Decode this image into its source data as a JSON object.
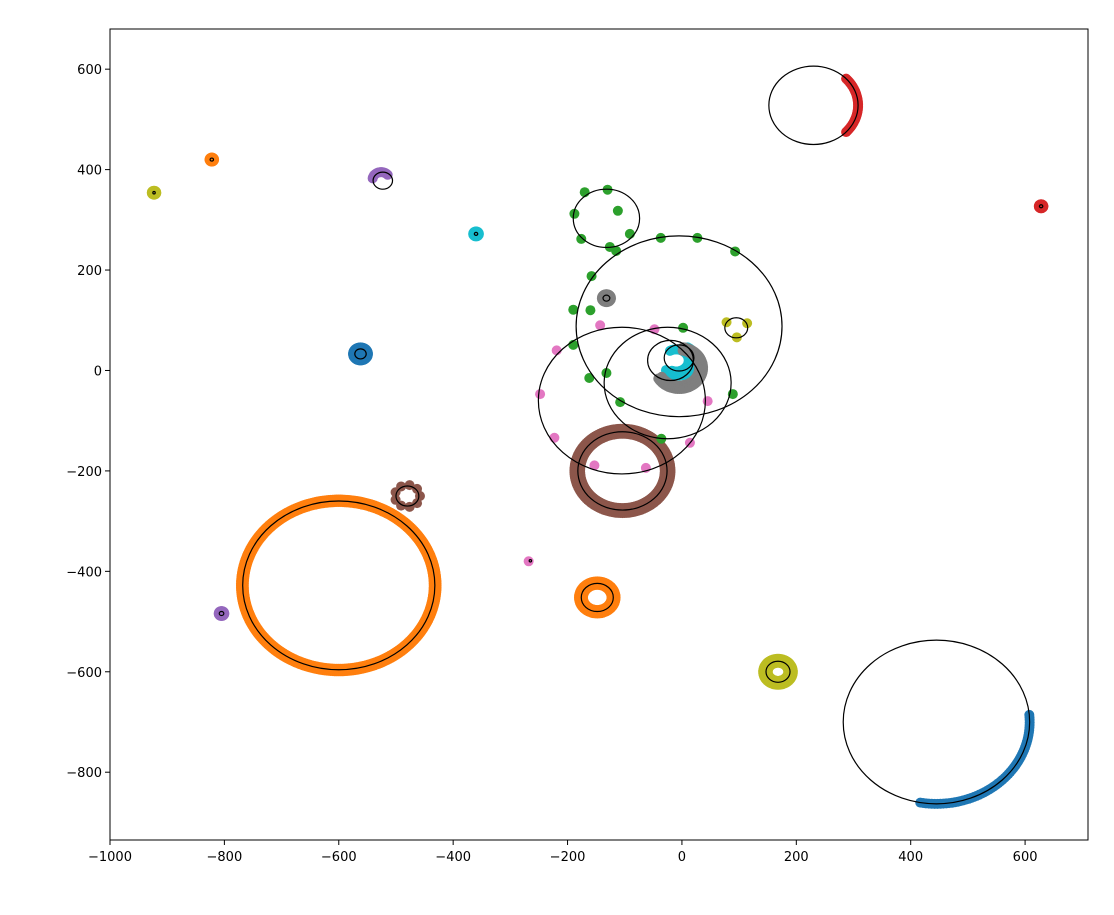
{
  "chart_data": {
    "type": "scatter",
    "title": "",
    "xlabel": "",
    "ylabel": "",
    "xlim": [
      -1000,
      710
    ],
    "ylim": [
      -935,
      680
    ],
    "grid": false,
    "xticks": [
      -1000,
      -800,
      -600,
      -400,
      -200,
      0,
      200,
      400,
      600
    ],
    "yticks": [
      600,
      400,
      200,
      0,
      -200,
      -400,
      -600,
      -800
    ],
    "xtick_labels": [
      "−1000",
      "−800",
      "−600",
      "−400",
      "−200",
      "0",
      "200",
      "400",
      "600"
    ],
    "ytick_labels": [
      "600",
      "400",
      "200",
      "0",
      "−200",
      "−400",
      "−600",
      "−800"
    ],
    "fitted_circles": [
      {
        "cx": 230,
        "cy": 528,
        "r": 78
      },
      {
        "cx": 445,
        "cy": -700,
        "r": 163
      },
      {
        "cx": -600,
        "cy": -428,
        "r": 168
      },
      {
        "cx": -104,
        "cy": -200,
        "r": 78
      },
      {
        "cx": -105,
        "cy": -60,
        "r": 146
      },
      {
        "cx": -5,
        "cy": 88,
        "r": 180
      },
      {
        "cx": -132,
        "cy": 303,
        "r": 58
      },
      {
        "cx": -25,
        "cy": -25,
        "r": 111
      },
      {
        "cx": -20,
        "cy": 20,
        "r": 40
      },
      {
        "cx": -5,
        "cy": 25,
        "r": 26
      },
      {
        "cx": 95,
        "cy": 85,
        "r": 20
      },
      {
        "cx": -523,
        "cy": 378,
        "r": 17
      },
      {
        "cx": -562,
        "cy": 33,
        "r": 10
      },
      {
        "cx": -132,
        "cy": 144,
        "r": 6
      },
      {
        "cx": -148,
        "cy": -452,
        "r": 28
      },
      {
        "cx": 168,
        "cy": -600,
        "r": 21
      },
      {
        "cx": -480,
        "cy": -250,
        "r": 20
      },
      {
        "cx": -360,
        "cy": 272,
        "r": 3
      },
      {
        "cx": -822,
        "cy": 420,
        "r": 3
      },
      {
        "cx": -923,
        "cy": 354,
        "r": 2
      },
      {
        "cx": -805,
        "cy": -484,
        "r": 4
      },
      {
        "cx": -265,
        "cy": -379,
        "r": 2
      },
      {
        "cx": 628,
        "cy": 327,
        "r": 3
      }
    ],
    "series": [
      {
        "color": "#d62728",
        "kind": "arc",
        "cx": 230,
        "cy": 528,
        "r": 78,
        "a0": -43,
        "a1": 43,
        "n": 40
      },
      {
        "color": "#d62728",
        "kind": "ring",
        "cx": 628,
        "cy": 327,
        "r": 4,
        "n": 20
      },
      {
        "color": "#1f77b4",
        "kind": "arc",
        "cx": 445,
        "cy": -700,
        "r": 163,
        "a0": -100,
        "a1": 5,
        "n": 60
      },
      {
        "color": "#1f77b4",
        "kind": "ring",
        "cx": -562,
        "cy": 33,
        "r": 13,
        "n": 40
      },
      {
        "color": "#1f77b4",
        "kind": "ring",
        "cx": -562,
        "cy": 33,
        "r": 8,
        "n": 30
      },
      {
        "color": "#ff7f0e",
        "kind": "ring",
        "cx": -600,
        "cy": -428,
        "r": 166,
        "n": 300
      },
      {
        "color": "#ff7f0e",
        "kind": "ring",
        "cx": -600,
        "cy": -428,
        "r": 171,
        "n": 300
      },
      {
        "color": "#ff7f0e",
        "kind": "ring",
        "cx": -148,
        "cy": -452,
        "r": 32,
        "n": 60
      },
      {
        "color": "#ff7f0e",
        "kind": "ring",
        "cx": -148,
        "cy": -452,
        "r": 25,
        "n": 50
      },
      {
        "color": "#ff7f0e",
        "kind": "ring",
        "cx": -822,
        "cy": 420,
        "r": 4,
        "n": 20
      },
      {
        "color": "#8c564b",
        "kind": "ring",
        "cx": -104,
        "cy": -200,
        "r": 74,
        "n": 140
      },
      {
        "color": "#8c564b",
        "kind": "ring",
        "cx": -104,
        "cy": -200,
        "r": 79,
        "n": 140
      },
      {
        "color": "#8c564b",
        "kind": "ring",
        "cx": -104,
        "cy": -200,
        "r": 84,
        "n": 140
      },
      {
        "color": "#8c564b",
        "kind": "ring",
        "cx": -480,
        "cy": -250,
        "r": 22,
        "n": 9
      },
      {
        "color": "#bcbd22",
        "kind": "ring",
        "cx": 168,
        "cy": -600,
        "r": 26,
        "n": 50
      },
      {
        "color": "#bcbd22",
        "kind": "ring",
        "cx": 168,
        "cy": -600,
        "r": 18,
        "n": 40
      },
      {
        "color": "#bcbd22",
        "kind": "ring",
        "cx": -923,
        "cy": 354,
        "r": 4,
        "n": 16
      },
      {
        "color": "#bcbd22",
        "kind": "points",
        "x": [
          78,
          114,
          96
        ],
        "y": [
          96,
          94,
          66
        ]
      },
      {
        "color": "#9467bd",
        "kind": "arc",
        "cx": -526,
        "cy": 380,
        "r": 15,
        "a0": 40,
        "a1": 170,
        "n": 16
      },
      {
        "color": "#9467bd",
        "kind": "ring",
        "cx": -805,
        "cy": -484,
        "r": 5,
        "n": 16
      },
      {
        "color": "#17becf",
        "kind": "ring",
        "cx": -360,
        "cy": 272,
        "r": 5,
        "n": 16
      },
      {
        "color": "#17becf",
        "kind": "arc",
        "cx": -10,
        "cy": 20,
        "r": 22,
        "a0": -110,
        "a1": 120,
        "n": 40
      },
      {
        "color": "#17becf",
        "kind": "arc",
        "cx": -5,
        "cy": 20,
        "r": 30,
        "a0": -140,
        "a1": 60,
        "n": 40
      },
      {
        "color": "#7f7f7f",
        "kind": "ring",
        "cx": -132,
        "cy": 144,
        "r": 8,
        "n": 20
      },
      {
        "color": "#7f7f7f",
        "kind": "arc",
        "cx": -5,
        "cy": 5,
        "r": 35,
        "a0": -150,
        "a1": 80,
        "n": 50
      },
      {
        "color": "#7f7f7f",
        "kind": "arc",
        "cx": -5,
        "cy": 5,
        "r": 42,
        "a0": -150,
        "a1": 80,
        "n": 50
      },
      {
        "color": "#2ca02c",
        "kind": "points",
        "x": [
          -130,
          -170,
          -188,
          -176,
          -158,
          -115,
          -91,
          -112,
          -126,
          -37,
          27,
          93,
          2,
          89,
          -36,
          -108,
          -162,
          -190,
          -160,
          -190,
          -132
        ],
        "y": [
          360,
          355,
          312,
          262,
          188,
          238,
          272,
          318,
          246,
          264,
          264,
          237,
          85,
          -47,
          -136,
          -63,
          -15,
          51,
          120,
          121,
          -5
        ]
      },
      {
        "color": "#e377c2",
        "kind": "points",
        "x": [
          -143,
          -48,
          45,
          14,
          -63,
          -153,
          -223,
          -248,
          -219,
          -268
        ],
        "y": [
          90,
          82,
          -61,
          -144,
          -194,
          -189,
          -134,
          -47,
          40,
          -380
        ]
      }
    ]
  }
}
